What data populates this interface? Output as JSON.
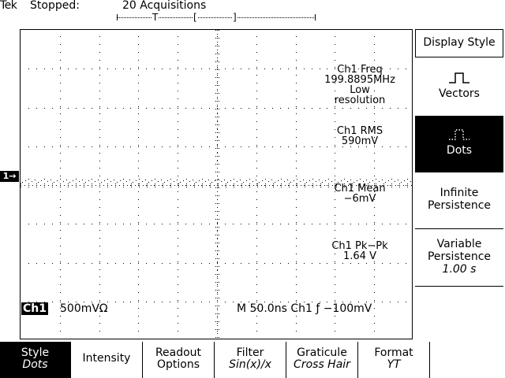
{
  "status": {
    "brand": "Tek",
    "state": "Stopped:",
    "acquisitions": "20 Acquisitions"
  },
  "record_ruler": {
    "trigger_mark": "T",
    "left_bracket": "[",
    "right_bracket": "]"
  },
  "measurements": {
    "freq": {
      "label": "Ch1 Freq",
      "value": "199.8895MHz",
      "note_line1": "Low",
      "note_line2": "resolution"
    },
    "rms": {
      "label": "Ch1 RMS",
      "value": "590mV"
    },
    "mean": {
      "label": "Ch1 Mean",
      "value": "−6mV"
    },
    "pkpk": {
      "label": "Ch1 Pk−Pk",
      "value": "1.64 V"
    }
  },
  "channel_marker": "1→",
  "readout": {
    "channel": "Ch1",
    "scale": "500mVΩ",
    "timebase": "M 50.0ns  Ch1 ƒ  −100mV"
  },
  "side_menu": {
    "title": "Display Style",
    "vectors": "Vectors",
    "dots": "Dots",
    "infinite_line1": "Infinite",
    "infinite_line2": "Persistence",
    "variable_line1": "Variable",
    "variable_line2": "Persistence",
    "variable_value": "1.00 s"
  },
  "bottom_menu": {
    "style": {
      "label": "Style",
      "value": "Dots"
    },
    "intensity": {
      "label": "Intensity"
    },
    "readout": {
      "label": "Readout",
      "label2": "Options"
    },
    "filter": {
      "label": "Filter",
      "value": "Sin(x)/x"
    },
    "graticule": {
      "label": "Graticule",
      "value": "Cross Hair"
    },
    "format": {
      "label": "Format",
      "value": "YT"
    }
  },
  "colors": {
    "background": "#ffffff",
    "foreground": "#000000"
  }
}
